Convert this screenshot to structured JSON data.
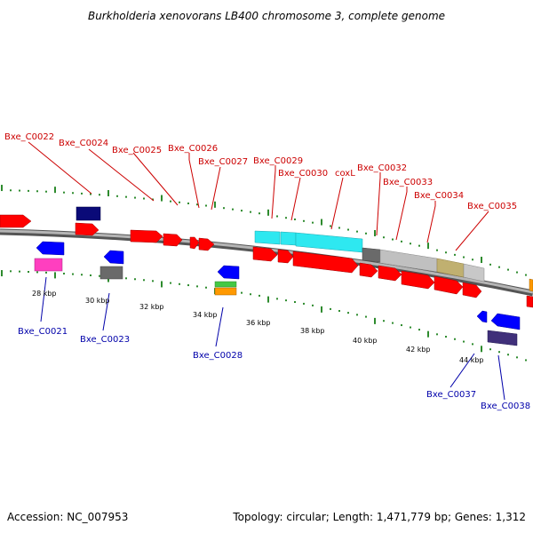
{
  "title": "Burkholderia xenovorans LB400 chromosome 3, complete genome",
  "footer": {
    "accession": "Accession: NC_007953",
    "summary": "Topology: circular; Length: 1,471,779 bp; Genes: 1,312"
  },
  "colors": {
    "forward_label": "#cc0000",
    "reverse_label": "#0000aa",
    "forward_gene": "#ff0000",
    "reverse_gene": "#0000ff",
    "backbone": "#888888",
    "tick": "#2e8b2e"
  },
  "scale_labels": [
    "28 kbp",
    "30 kbp",
    "32 kbp",
    "34 kbp",
    "36 kbp",
    "38 kbp",
    "40 kbp",
    "42 kbp",
    "44 kbp"
  ],
  "forward_labels": [
    "Bxe_C0022",
    "Bxe_C0024",
    "Bxe_C0025",
    "Bxe_C0026",
    "Bxe_C0027",
    "Bxe_C0029",
    "Bxe_C0030",
    "coxL",
    "Bxe_C0032",
    "Bxe_C0033",
    "Bxe_C0034",
    "Bxe_C0035"
  ],
  "reverse_labels": [
    "Bxe_C0021",
    "Bxe_C0023",
    "Bxe_C0028",
    "Bxe_C0037",
    "Bxe_C0038"
  ]
}
